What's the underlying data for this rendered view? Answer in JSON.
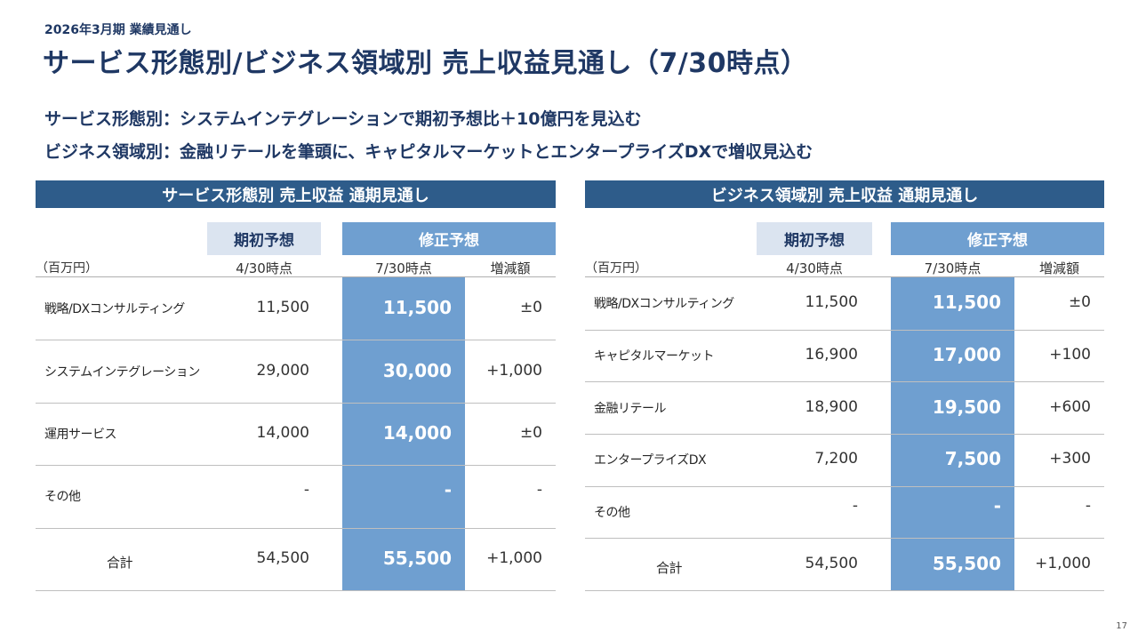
{
  "eyebrow": "2026年3月期 業績見通し",
  "title": "サービス形態別/ビジネス領域別 売上収益見通し（7/30時点）",
  "lead1": "サービス形態別：システムインテグレーションで期初予想比＋10億円を見込む",
  "lead2": "ビジネス領域別：金融リテールを筆頭に、キャピタルマーケットとエンタープライズDXで増収見込む",
  "page_number": "17",
  "colors": {
    "bar": "#2e5c8a",
    "initial_header": "#dbe4f0",
    "revised": "#6f9fd0",
    "text": "#1f3864"
  },
  "left": {
    "header": "サービス形態別 売上収益 通期見通し",
    "initial_label": "期初予想",
    "revised_label": "修正予想",
    "unit": "（百万円）",
    "initial_date": "4/30時点",
    "revised_date": "7/30時点",
    "diff_label": "増減額",
    "rows": [
      {
        "label": "戦略/DXコンサルティング",
        "initial": "11,500",
        "revised": "11,500",
        "diff": "±0"
      },
      {
        "label": "システムインテグレーション",
        "initial": "29,000",
        "revised": "30,000",
        "diff": "+1,000"
      },
      {
        "label": "運用サービス",
        "initial": "14,000",
        "revised": "14,000",
        "diff": "±0"
      },
      {
        "label": "その他",
        "initial": "-",
        "revised": "-",
        "diff": "-"
      },
      {
        "label": "合計",
        "initial": "54,500",
        "revised": "55,500",
        "diff": "+1,000"
      }
    ]
  },
  "right": {
    "header": "ビジネス領域別 売上収益 通期見通し",
    "initial_label": "期初予想",
    "revised_label": "修正予想",
    "unit": "（百万円）",
    "initial_date": "4/30時点",
    "revised_date": "7/30時点",
    "diff_label": "増減額",
    "rows": [
      {
        "label": "戦略/DXコンサルティング",
        "initial": "11,500",
        "revised": "11,500",
        "diff": "±0"
      },
      {
        "label": "キャピタルマーケット",
        "initial": "16,900",
        "revised": "17,000",
        "diff": "+100"
      },
      {
        "label": "金融リテール",
        "initial": "18,900",
        "revised": "19,500",
        "diff": "+600"
      },
      {
        "label": "エンタープライズDX",
        "initial": "7,200",
        "revised": "7,500",
        "diff": "+300"
      },
      {
        "label": "その他",
        "initial": "-",
        "revised": "-",
        "diff": "-"
      },
      {
        "label": "合計",
        "initial": "54,500",
        "revised": "55,500",
        "diff": "+1,000"
      }
    ]
  }
}
